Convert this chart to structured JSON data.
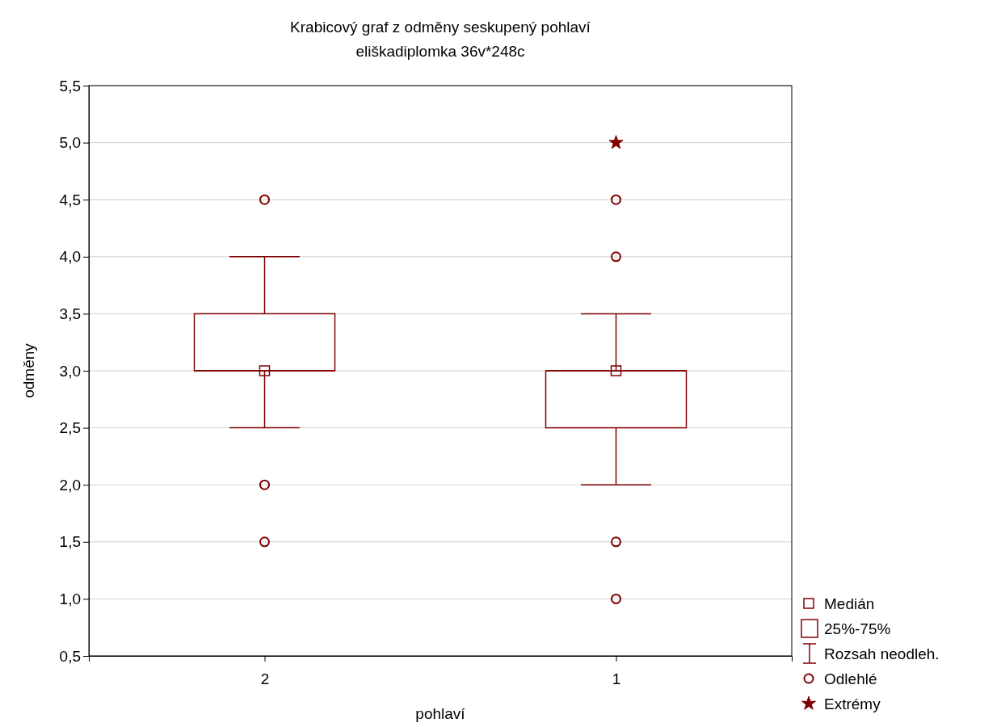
{
  "chart_data": {
    "type": "box",
    "title": "Krabicový graf z odměny seskupený pohlaví",
    "subtitle": "eliškadiplomka 36v*248c",
    "xlabel": "pohlaví",
    "ylabel": "odměny",
    "categories": [
      "2",
      "1"
    ],
    "ylim": [
      0.5,
      5.5
    ],
    "yticks": [
      {
        "value": 0.5,
        "label": "0,5"
      },
      {
        "value": 1,
        "label": "1,0"
      },
      {
        "value": 1.5,
        "label": "1,5"
      },
      {
        "value": 2,
        "label": "2,0"
      },
      {
        "value": 2.5,
        "label": "2,5"
      },
      {
        "value": 3,
        "label": "3,0"
      },
      {
        "value": 3.5,
        "label": "3,5"
      },
      {
        "value": 4,
        "label": "4,0"
      },
      {
        "value": 4.5,
        "label": "4,5"
      },
      {
        "value": 5,
        "label": "5,0"
      },
      {
        "value": 5.5,
        "label": "5,5"
      }
    ],
    "grid": "y",
    "legend": "bottom right",
    "annotations": [
      "25%-75%",
      "Rozsah neodleh."
    ],
    "series": [
      {
        "type": "scatter",
        "name": "Medián",
        "color": "#800000",
        "marker": "square",
        "x": [
          "2",
          "1"
        ],
        "values": [
          3.0,
          3.0
        ]
      },
      {
        "color": "#800000",
        "boxes": [
          {
            "low": 2.5,
            "q1": 3.0,
            "median": 3.0,
            "q3": 3.5,
            "high": 4.0
          },
          {
            "low": 2.0,
            "q1": 2.5,
            "median": 3.0,
            "q3": 3.0,
            "high": 3.5
          }
        ]
      },
      {
        "type": "scatter",
        "name": "Odlehlé",
        "color": "#800000",
        "marker": "circle",
        "x": [
          "2",
          "2",
          "2",
          "1",
          "1",
          "1",
          "1"
        ],
        "values": [
          4.5,
          2.0,
          1.5,
          4.5,
          4.0,
          1.5,
          1.0
        ]
      },
      {
        "type": "scatter",
        "name": "Extrémy",
        "color": "#800000",
        "marker": "star",
        "x": [
          "1"
        ],
        "values": [
          5.0
        ]
      }
    ]
  }
}
